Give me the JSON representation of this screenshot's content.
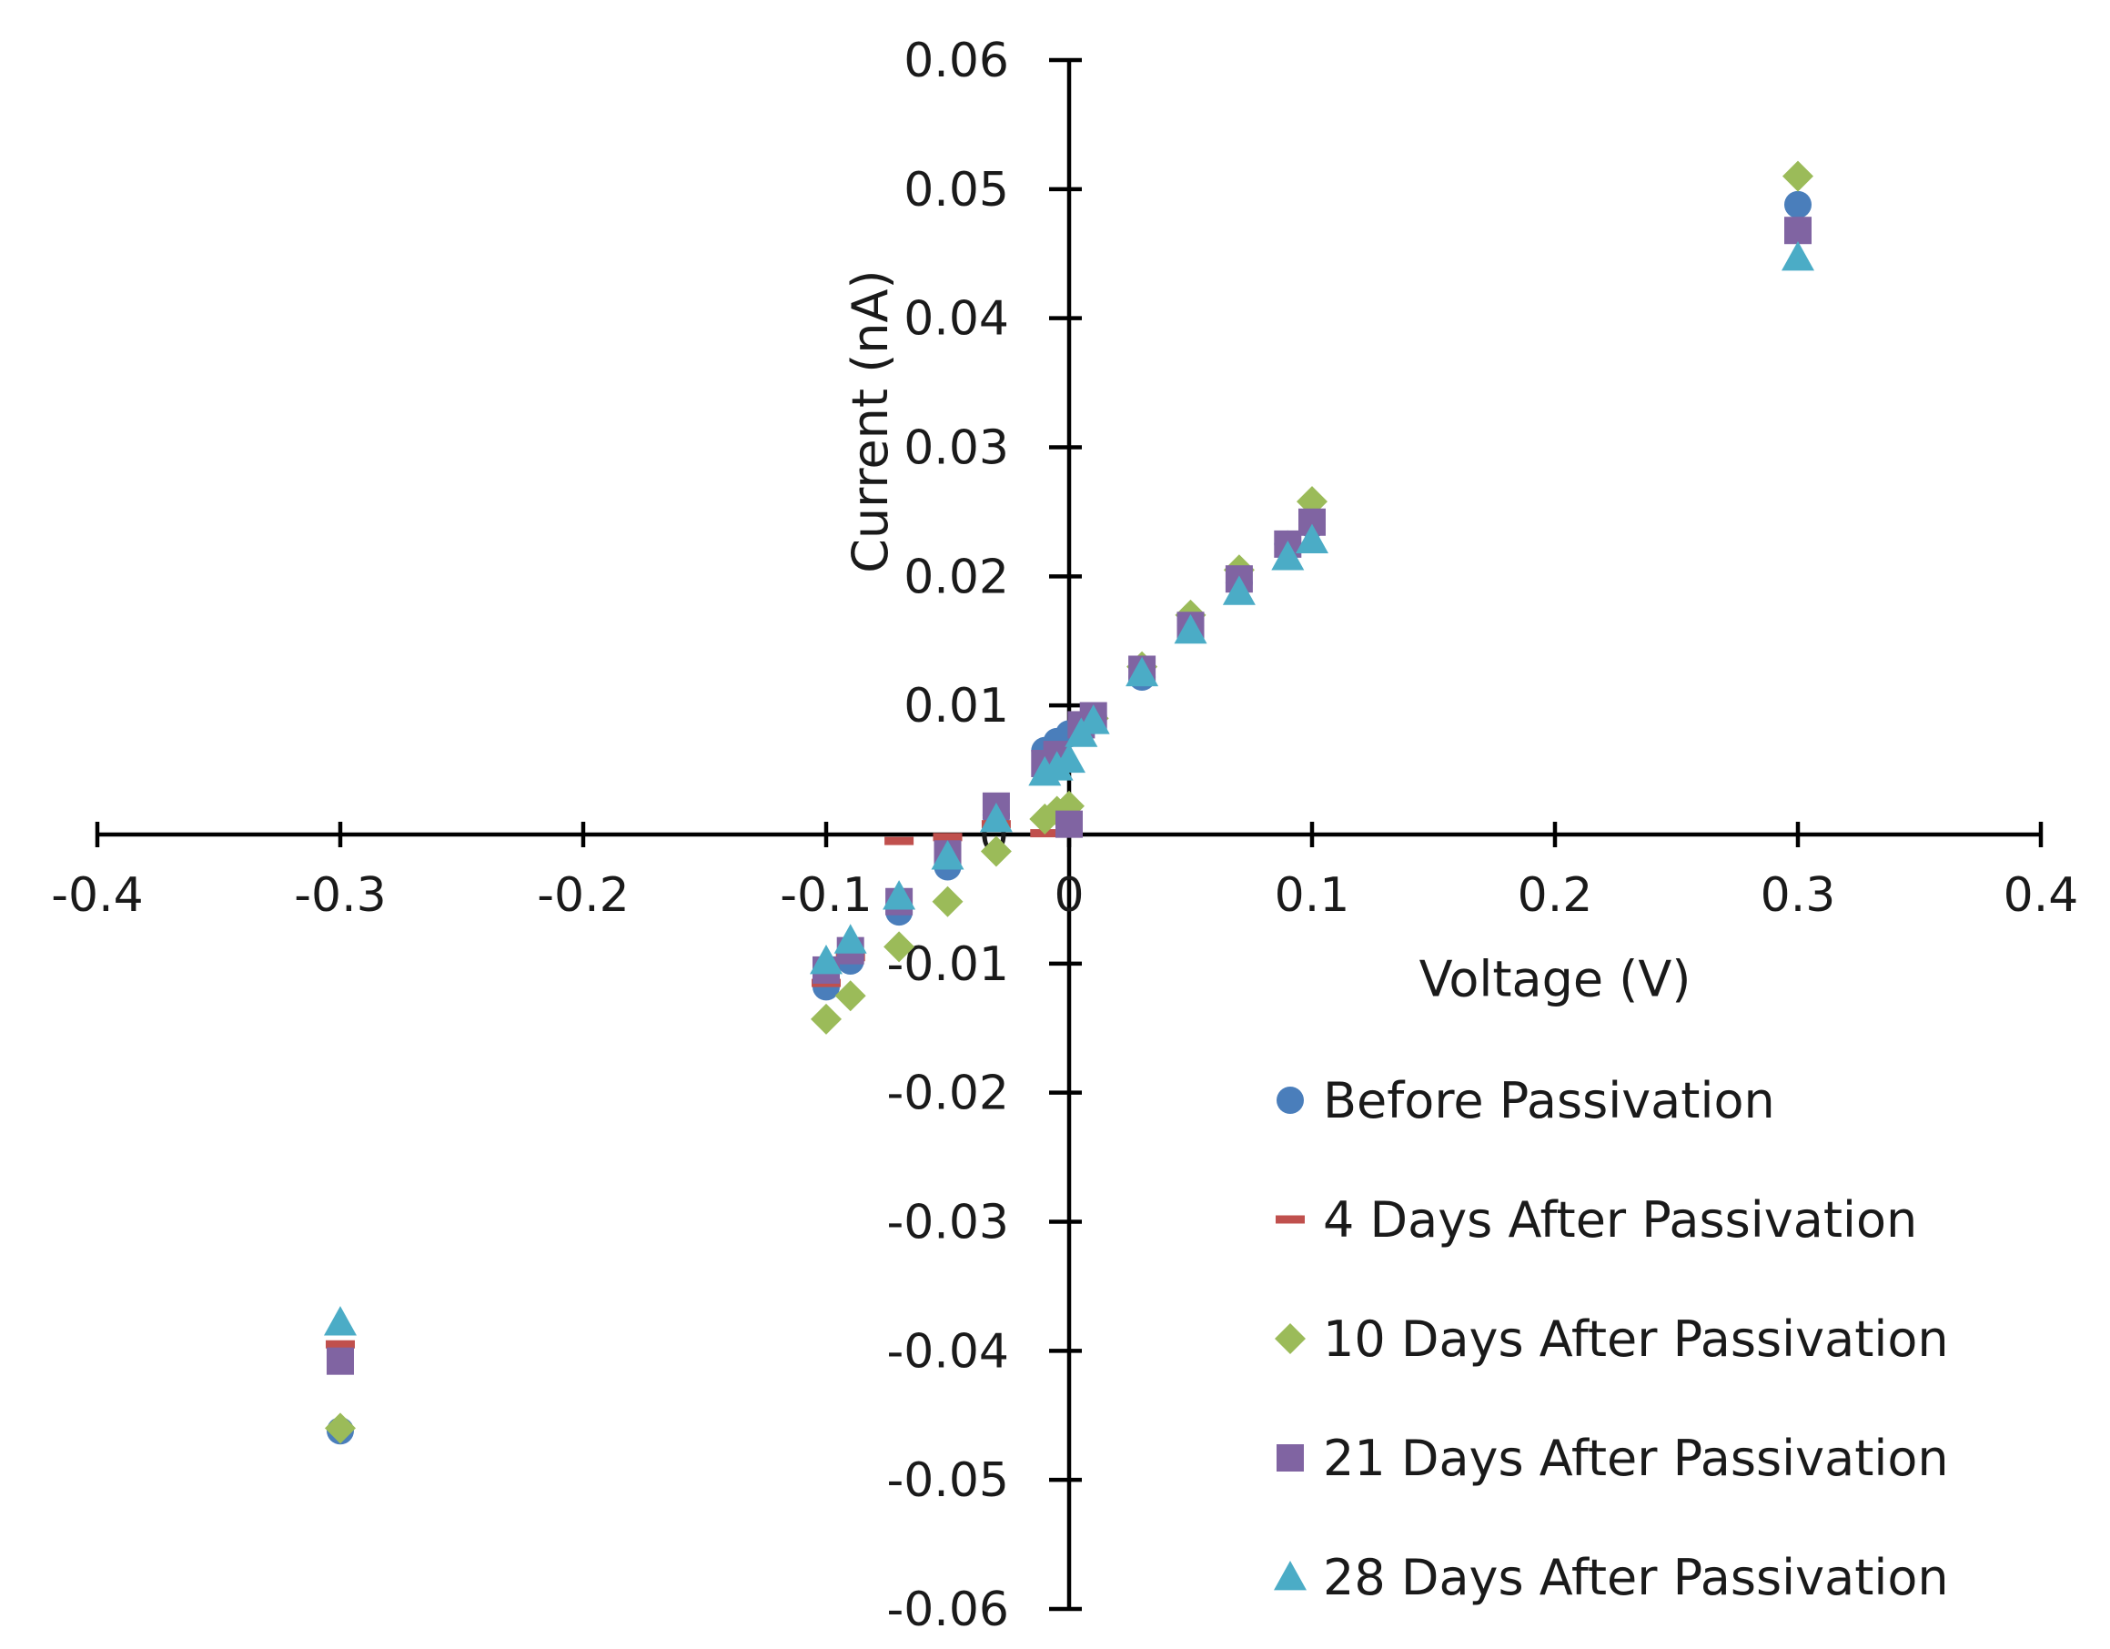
{
  "chart_data": {
    "type": "scatter",
    "title": "",
    "xlabel": "Voltage (V)",
    "ylabel": "Current (nA)",
    "xlim": [
      -0.4,
      0.4
    ],
    "ylim": [
      -0.06,
      0.06
    ],
    "x_ticks": [
      -0.4,
      -0.3,
      -0.2,
      -0.1,
      0,
      0.1,
      0.2,
      0.3,
      0.4
    ],
    "x_tick_labels": [
      "-0.4",
      "-0.3",
      "-0.2",
      "-0.1",
      "0",
      "0.1",
      "0.2",
      "0.3",
      "0.4"
    ],
    "y_ticks": [
      0.06,
      0.05,
      0.04,
      0.03,
      0.02,
      0.01,
      0,
      -0.01,
      -0.02,
      -0.03,
      -0.04,
      -0.05,
      -0.06
    ],
    "y_tick_labels": [
      "0.06",
      "0.05",
      "0.04",
      "0.03",
      "0.02",
      "0.01",
      "0",
      "-0.01",
      "-0.02",
      "-0.03",
      "-0.04",
      "-0.05",
      "-0.06"
    ],
    "grid": false,
    "legend_position": "bottom-right",
    "series": [
      {
        "name": "Before Passivation",
        "marker": "circle",
        "color": "#4a7ebb",
        "x": [
          -0.3,
          -0.1,
          -0.09,
          -0.07,
          -0.05,
          -0.03,
          -0.01,
          -0.005,
          0,
          0.005,
          0.01,
          0.03,
          0.05,
          0.07,
          0.09,
          0.1,
          0.3
        ],
        "y": [
          -0.0462,
          -0.0118,
          -0.0098,
          -0.006,
          -0.0025,
          0.0015,
          0.0065,
          0.0072,
          0.0078,
          0.0085,
          0.0092,
          0.0122,
          0.0162,
          0.0195,
          0.0225,
          0.024,
          0.0488
        ]
      },
      {
        "name": "4 Days After Passivation",
        "marker": "dash",
        "color": "#c0504d",
        "x": [
          -0.3,
          -0.1,
          -0.09,
          -0.07,
          -0.05,
          -0.03,
          -0.01
        ],
        "y": [
          -0.0395,
          -0.0115,
          -0.0095,
          -0.0005,
          -0.0002,
          0.0008,
          0.0001
        ]
      },
      {
        "name": "10 Days After Passivation",
        "marker": "diamond",
        "color": "#9bbb59",
        "x": [
          -0.3,
          -0.1,
          -0.09,
          -0.07,
          -0.05,
          -0.03,
          -0.01,
          -0.005,
          0,
          0.01,
          0.03,
          0.05,
          0.07,
          0.1,
          0.3
        ],
        "y": [
          -0.046,
          -0.0143,
          -0.0125,
          -0.0087,
          -0.0052,
          -0.0013,
          0.0012,
          0.0018,
          0.0022,
          0.009,
          0.013,
          0.017,
          0.0205,
          0.0258,
          0.051
        ]
      },
      {
        "name": "21 Days After Passivation",
        "marker": "square",
        "color": "#8064a2",
        "x": [
          -0.3,
          -0.1,
          -0.09,
          -0.07,
          -0.05,
          -0.03,
          -0.01,
          -0.005,
          0,
          0.005,
          0.01,
          0.03,
          0.05,
          0.07,
          0.09,
          0.1,
          0.3
        ],
        "y": [
          -0.0408,
          -0.0105,
          -0.009,
          -0.0052,
          -0.0015,
          0.0022,
          0.0055,
          0.0062,
          0.0008,
          0.0085,
          0.0092,
          0.0128,
          0.0162,
          0.0198,
          0.0225,
          0.0242,
          0.0468
        ]
      },
      {
        "name": "28 Days After Passivation",
        "marker": "triangle",
        "color": "#4bacc6",
        "x": [
          -0.3,
          -0.1,
          -0.09,
          -0.07,
          -0.05,
          -0.03,
          -0.01,
          -0.005,
          0,
          0.005,
          0.01,
          0.03,
          0.05,
          0.07,
          0.09,
          0.1,
          0.3
        ],
        "y": [
          -0.0378,
          -0.0098,
          -0.0082,
          -0.0048,
          -0.0017,
          0.0012,
          0.0048,
          0.0052,
          0.0058,
          0.0078,
          0.0088,
          0.0125,
          0.0158,
          0.0188,
          0.0215,
          0.0228,
          0.0447
        ]
      }
    ]
  }
}
